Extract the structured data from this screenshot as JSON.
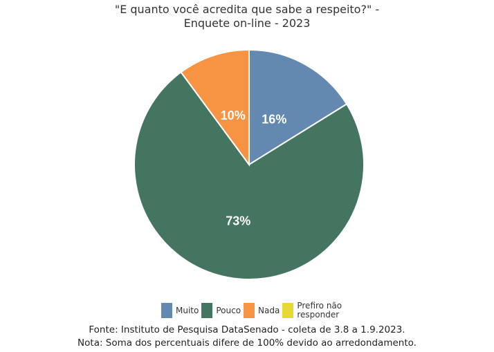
{
  "chart_data": {
    "type": "pie",
    "title": "\"E quanto você acredita que sabe a respeito?\" - Enquete on-line - 2023",
    "title_lines": [
      "\"E quanto você acredita que sabe a respeito?\" -",
      "Enquete on-line - 2023"
    ],
    "categories": [
      "Muito",
      "Pouco",
      "Nada",
      "Prefiro não responder"
    ],
    "values": [
      16,
      73,
      10,
      0
    ],
    "data_labels": [
      "16%",
      "73%",
      "10%",
      ""
    ],
    "colors": [
      "#6489b0",
      "#437561",
      "#f79443",
      "#e6d936"
    ],
    "start_angle_deg": 0,
    "direction": "clockwise",
    "legend_position": "bottom",
    "xlabel": "",
    "ylabel": ""
  },
  "legend": [
    {
      "label": "Muito",
      "color": "#6489b0"
    },
    {
      "label": "Pouco",
      "color": "#437561"
    },
    {
      "label": "Nada",
      "color": "#f79443"
    },
    {
      "label": "Prefiro não responder",
      "color": "#e6d936"
    }
  ],
  "notes": {
    "source": "Fonte: Instituto de Pesquisa DataSenado - coleta de 3.8 a 1.9.2023.",
    "note": "Nota: Soma dos percentuais difere de 100% devido ao arredondamento."
  }
}
